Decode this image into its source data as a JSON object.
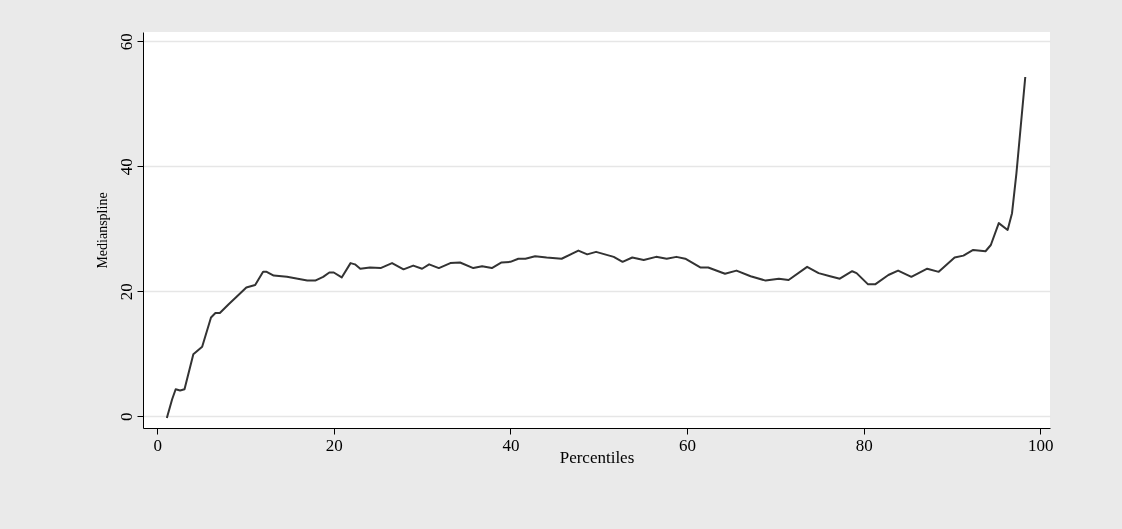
{
  "chart_data": {
    "type": "line",
    "xlabel": "Percentiles",
    "ylabel": "Medianspline",
    "x": [
      1.1,
      1.7,
      2.1,
      2.6,
      3.1,
      4.1,
      5.1,
      6.1,
      6.6,
      7.1,
      8.1,
      9.0,
      10.1,
      11.1,
      12.0,
      12.4,
      13.2,
      14.7,
      17.0,
      17.9,
      18.8,
      19.5,
      20.0,
      20.9,
      21.9,
      22.4,
      23.0,
      24.1,
      25.3,
      26.6,
      27.9,
      29.0,
      30.0,
      30.8,
      31.9,
      33.2,
      34.3,
      35.8,
      36.8,
      37.9,
      39.0,
      40.0,
      40.9,
      41.7,
      42.8,
      44.1,
      45.8,
      47.7,
      48.7,
      49.7,
      50.7,
      51.7,
      52.7,
      53.8,
      55.1,
      56.5,
      57.7,
      58.8,
      59.8,
      61.5,
      62.4,
      64.3,
      65.6,
      67.2,
      68.9,
      70.4,
      71.5,
      73.6,
      74.9,
      76.2,
      77.3,
      78.7,
      79.2,
      80.5,
      81.3,
      82.8,
      83.9,
      85.4,
      87.2,
      88.5,
      90.3,
      91.3,
      92.4,
      93.8,
      94.4,
      95.3,
      96.3,
      96.8,
      97.3,
      98.3
    ],
    "series": [
      {
        "color": "#333333",
        "values": [
          -0.3,
          2.7,
          4.3,
          4.1,
          4.3,
          9.9,
          11.1,
          15.8,
          16.5,
          16.5,
          17.9,
          19.1,
          20.6,
          21.0,
          23.1,
          23.1,
          22.5,
          22.3,
          21.7,
          21.7,
          22.3,
          23.0,
          23.0,
          22.2,
          24.5,
          24.3,
          23.6,
          23.8,
          23.7,
          24.5,
          23.5,
          24.1,
          23.6,
          24.3,
          23.7,
          24.5,
          24.6,
          23.7,
          24.0,
          23.7,
          24.6,
          24.7,
          25.2,
          25.2,
          25.6,
          25.4,
          25.2,
          26.5,
          25.9,
          26.3,
          25.9,
          25.5,
          24.7,
          25.4,
          25.0,
          25.5,
          25.2,
          25.5,
          25.2,
          23.8,
          23.8,
          22.8,
          23.3,
          22.4,
          21.7,
          22.0,
          21.8,
          23.9,
          22.9,
          22.4,
          22.0,
          23.2,
          22.9,
          21.1,
          21.1,
          22.6,
          23.3,
          22.3,
          23.6,
          23.1,
          25.4,
          25.7,
          26.6,
          26.4,
          27.4,
          30.9,
          29.8,
          32.5,
          38.9,
          54.3
        ]
      }
    ],
    "xlim": [
      -1.6,
      101.1
    ],
    "ylim": [
      -1.9,
      61.5
    ],
    "xticks": [
      0,
      20,
      40,
      60,
      80,
      100
    ],
    "yticks": [
      0,
      20,
      40,
      60
    ],
    "grid": "y",
    "legend": false,
    "marker": "none",
    "line_style": "solid"
  }
}
